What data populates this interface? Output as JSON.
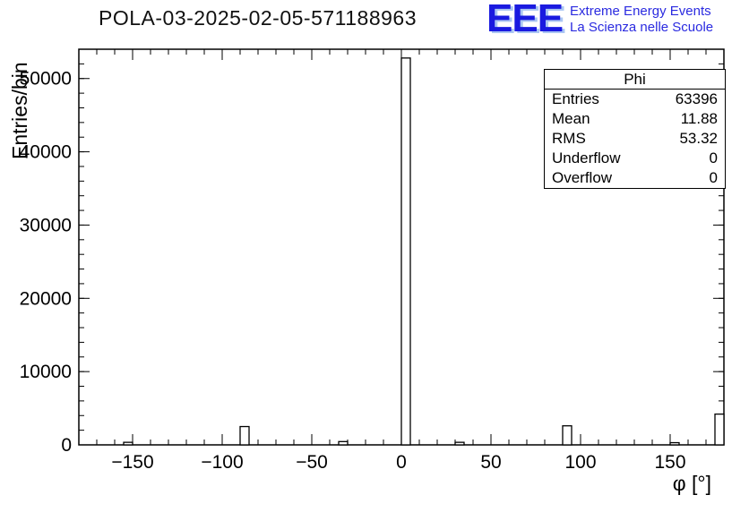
{
  "header": {
    "title": "POLA-03-2025-02-05-571188963",
    "brand": {
      "initials": "EEE",
      "line1": "Extreme Energy Events",
      "line2": "La Scienza nelle Scuole",
      "color": "#1a1ae0"
    }
  },
  "chart_data": {
    "type": "bar",
    "title": "POLA-03-2025-02-05-571188963",
    "xlabel": "φ [°]",
    "ylabel": "Entries/bin",
    "xlim": [
      -180,
      180
    ],
    "ylim": [
      0,
      54000
    ],
    "x_ticks": [
      -150,
      -100,
      -50,
      0,
      50,
      100,
      150
    ],
    "y_ticks": [
      0,
      10000,
      20000,
      30000,
      40000,
      50000
    ],
    "x_minor_step": 10,
    "y_minor_step": 2000,
    "grid": false,
    "bar_fill": "#ffffff",
    "bar_stroke": "#000000",
    "bins": [
      {
        "x0": -155,
        "x1": -150,
        "y": 350
      },
      {
        "x0": -90,
        "x1": -85,
        "y": 2500
      },
      {
        "x0": -35,
        "x1": -30,
        "y": 450
      },
      {
        "x0": 0,
        "x1": 5,
        "y": 52800
      },
      {
        "x0": 30,
        "x1": 35,
        "y": 350
      },
      {
        "x0": 90,
        "x1": 95,
        "y": 2600
      },
      {
        "x0": 150,
        "x1": 155,
        "y": 300
      },
      {
        "x0": 175,
        "x1": 180,
        "y": 4200
      }
    ],
    "stats": {
      "title": "Phi",
      "rows": [
        {
          "label": "Entries",
          "value": "63396"
        },
        {
          "label": "Mean",
          "value": "11.88"
        },
        {
          "label": "RMS",
          "value": "53.32"
        },
        {
          "label": "Underflow",
          "value": "0"
        },
        {
          "label": "Overflow",
          "value": "0"
        }
      ]
    }
  }
}
